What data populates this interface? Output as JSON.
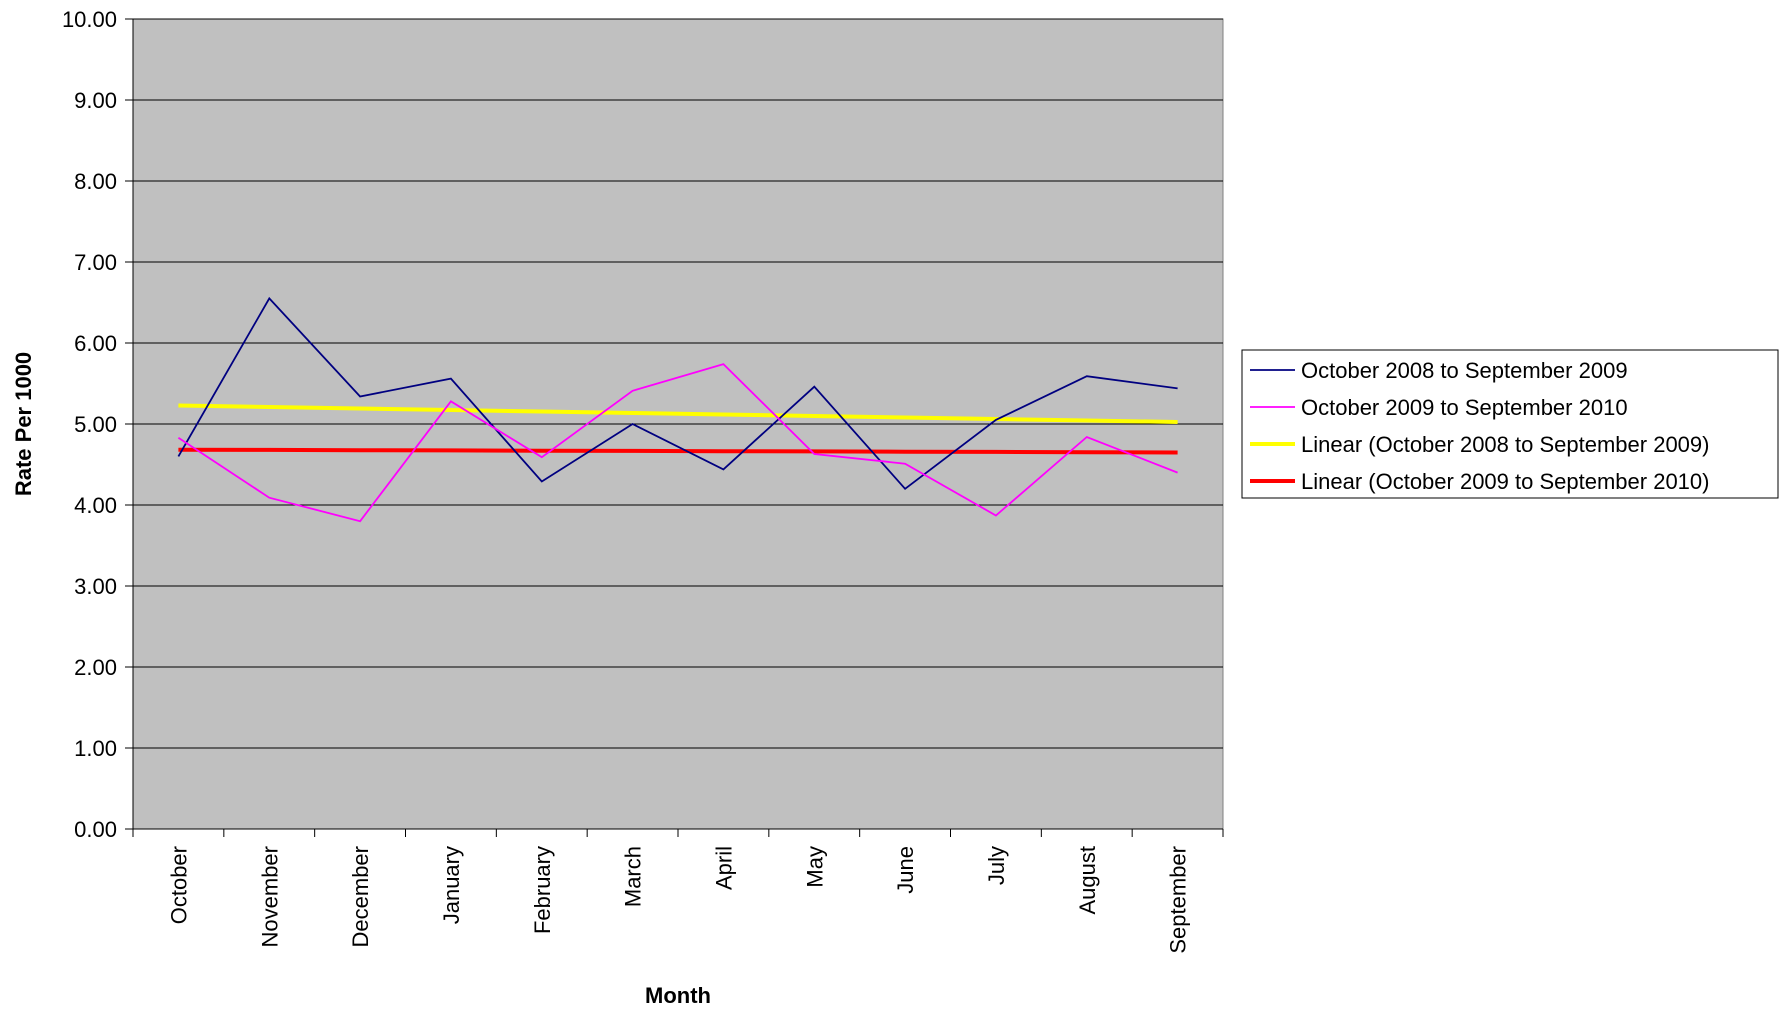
{
  "chart_data": {
    "type": "line",
    "title": "",
    "xlabel": "Month",
    "ylabel": "Rate Per 1000",
    "categories": [
      "October",
      "November",
      "December",
      "January",
      "February",
      "March",
      "April",
      "May",
      "June",
      "July",
      "August",
      "September"
    ],
    "ylim": [
      0,
      10
    ],
    "y_ticks": [
      "0.00",
      "1.00",
      "2.00",
      "3.00",
      "4.00",
      "5.00",
      "6.00",
      "7.00",
      "8.00",
      "9.00",
      "10.00"
    ],
    "grid": true,
    "legend_position": "right",
    "plot_background": "#c0c0c0",
    "series": [
      {
        "name": "October 2008 to September 2009",
        "color": "#000080",
        "values": [
          4.6,
          6.55,
          5.34,
          5.56,
          4.29,
          5.0,
          4.44,
          5.46,
          4.2,
          5.05,
          5.59,
          5.44
        ]
      },
      {
        "name": "October 2009 to September 2010",
        "color": "#ff00ff",
        "values": [
          4.83,
          4.09,
          3.8,
          5.28,
          4.59,
          5.41,
          5.74,
          4.63,
          4.51,
          3.87,
          4.84,
          4.4
        ]
      },
      {
        "name": "Linear (October 2008 to September 2009)",
        "color": "#ffff00",
        "trend_of": 0
      },
      {
        "name": "Linear (October 2009 to September 2010)",
        "color": "#ff0000",
        "trend_of": 1
      }
    ]
  }
}
